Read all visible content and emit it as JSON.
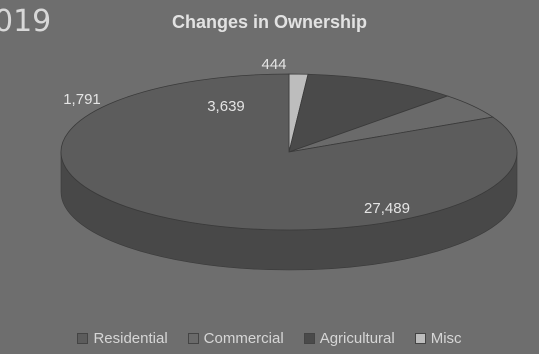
{
  "header": {
    "year_fragment": "019"
  },
  "chart_data": {
    "type": "pie",
    "title": "Changes in Ownership",
    "categories": [
      "Residential",
      "Commercial",
      "Agricultural",
      "Misc"
    ],
    "values": [
      27489,
      1791,
      3639,
      444
    ],
    "value_labels": [
      "27,489",
      "1,791",
      "3,639",
      "444"
    ],
    "colors": [
      "#5c5c5c",
      "#6a6a6a",
      "#4a4a4a",
      "#bdbdbd"
    ],
    "legend_position": "bottom",
    "style": "3d"
  }
}
